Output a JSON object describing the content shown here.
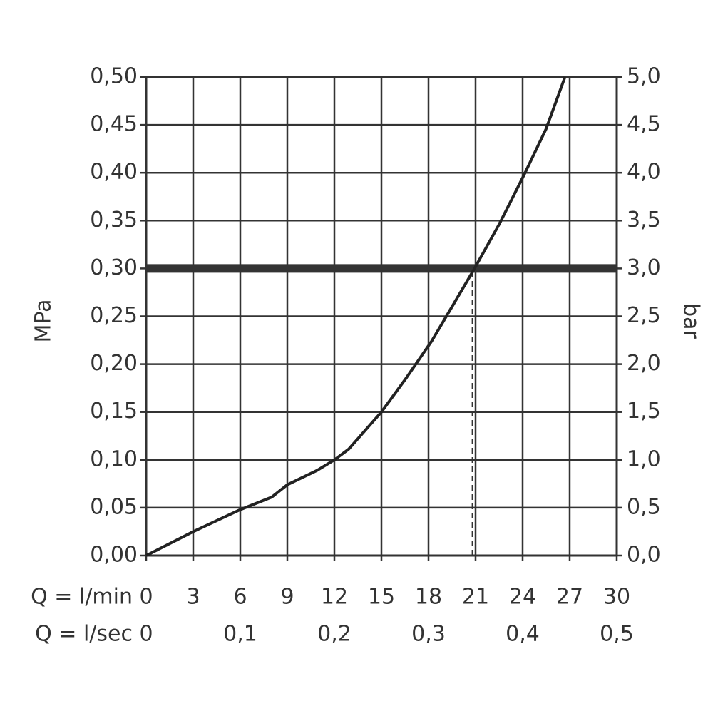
{
  "chart_data": {
    "type": "line",
    "xlabel": "Q = l/min",
    "x2label": "Q = l/sec",
    "ylabel": "MPa",
    "y2label": "bar",
    "xlim": [
      0,
      30
    ],
    "xticks": [
      0,
      3,
      6,
      9,
      12,
      15,
      18,
      21,
      24,
      27,
      30
    ],
    "x2lim": [
      0,
      0.5
    ],
    "x2ticks": [
      0,
      {
        "value": 0.1,
        "label": "0,1"
      },
      {
        "value": 0.2,
        "label": "0,2"
      },
      {
        "value": 0.3,
        "label": "0,3"
      },
      {
        "value": 0.4,
        "label": "0,4"
      },
      {
        "value": 0.5,
        "label": "0,5"
      }
    ],
    "ylim": [
      0,
      0.5
    ],
    "yticks": [
      {
        "value": 0,
        "label": "0,00"
      },
      {
        "value": 0.05,
        "label": "0,05"
      },
      {
        "value": 0.1,
        "label": "0,10"
      },
      {
        "value": 0.15,
        "label": "0,15"
      },
      {
        "value": 0.2,
        "label": "0,20"
      },
      {
        "value": 0.25,
        "label": "0,25"
      },
      {
        "value": 0.3,
        "label": "0,30"
      },
      {
        "value": 0.35,
        "label": "0,35"
      },
      {
        "value": 0.4,
        "label": "0,40"
      },
      {
        "value": 0.45,
        "label": "0,45"
      },
      {
        "value": 0.5,
        "label": "0,50"
      }
    ],
    "y2lim": [
      0,
      5
    ],
    "y2ticks": [
      {
        "value": 0,
        "label": "0,0"
      },
      {
        "value": 0.5,
        "label": "0,5"
      },
      {
        "value": 1,
        "label": "1,0"
      },
      {
        "value": 1.5,
        "label": "1,5"
      },
      {
        "value": 2,
        "label": "2,0"
      },
      {
        "value": 2.5,
        "label": "2,5"
      },
      {
        "value": 3,
        "label": "3,0"
      },
      {
        "value": 3.5,
        "label": "3,5"
      },
      {
        "value": 4,
        "label": "4,0"
      },
      {
        "value": 4.5,
        "label": "4,5"
      },
      {
        "value": 5,
        "label": "5,0"
      }
    ],
    "grid": true,
    "hline": 0.3,
    "vline": 20.8,
    "series": [
      {
        "color": "#222222",
        "x": [
          0,
          3,
          6,
          8,
          9,
          10.9,
          12,
          12.9,
          15,
          16.6,
          18.2,
          19.5,
          20.9,
          22.5,
          24.1,
          25.5,
          26.7
        ],
        "values": [
          0,
          0.025,
          0.048,
          0.061,
          0.074,
          0.089,
          0.1,
          0.111,
          0.15,
          0.186,
          0.224,
          0.26,
          0.299,
          0.346,
          0.398,
          0.446,
          0.5
        ]
      }
    ]
  }
}
